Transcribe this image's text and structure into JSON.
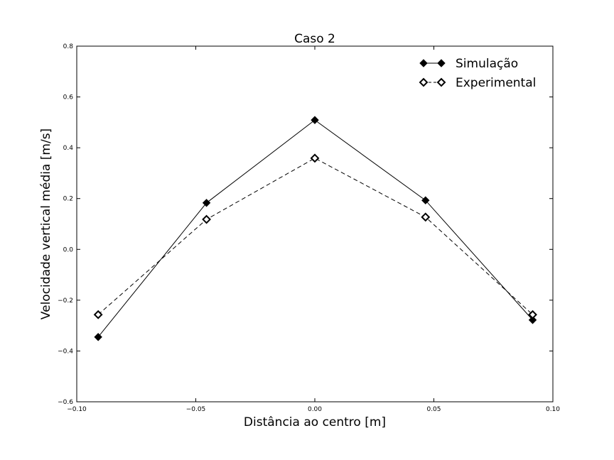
{
  "chart_data": {
    "type": "line",
    "title": "Caso 2",
    "xlabel": "Distância ao centro [m]",
    "ylabel": "Velocidade vertical média [m/s]",
    "xlim": [
      -0.1,
      0.1
    ],
    "ylim": [
      -0.6,
      0.8
    ],
    "xticks": [
      -0.1,
      -0.05,
      0.0,
      0.05,
      0.1
    ],
    "xtick_labels": [
      "−0.10",
      "−0.05",
      "0.00",
      "0.05",
      "0.10"
    ],
    "yticks": [
      -0.6,
      -0.4,
      -0.2,
      0.0,
      0.2,
      0.4,
      0.6,
      0.8
    ],
    "ytick_labels": [
      "−0.6",
      "−0.4",
      "−0.2",
      "0.0",
      "0.2",
      "0.4",
      "0.6",
      "0.8"
    ],
    "grid": false,
    "legend_position": "top-right",
    "x": [
      -0.091,
      -0.0455,
      0.0,
      0.0465,
      0.0915
    ],
    "series": [
      {
        "name": "Simulação",
        "values": [
          -0.345,
          0.183,
          0.509,
          0.193,
          -0.278
        ],
        "color": "#000000",
        "line_style": "solid",
        "marker": "filled-diamond"
      },
      {
        "name": "Experimental",
        "values": [
          -0.257,
          0.118,
          0.359,
          0.127,
          -0.257
        ],
        "color": "#000000",
        "line_style": "dashed",
        "marker": "open-diamond"
      }
    ]
  }
}
